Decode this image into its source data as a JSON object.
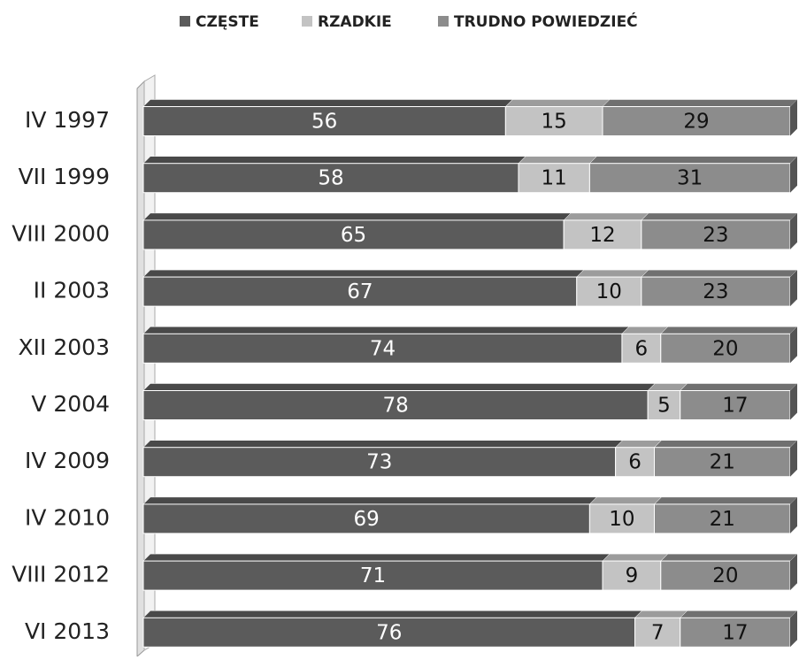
{
  "chart_data": {
    "type": "stacked-bar-horizontal",
    "categories": [
      "IV 1997",
      "VII 1999",
      "VIII 2000",
      "II 2003",
      "XII 2003",
      "V 2004",
      "IV 2009",
      "IV 2010",
      "VIII 2012",
      "VI 2013"
    ],
    "series": [
      {
        "name": "CZĘSTE",
        "color": "#5b5b5b",
        "values": [
          56,
          58,
          65,
          67,
          74,
          78,
          73,
          69,
          71,
          76
        ]
      },
      {
        "name": "RZADKIE",
        "color": "#c3c3c3",
        "values": [
          15,
          11,
          12,
          10,
          6,
          5,
          6,
          10,
          9,
          7
        ]
      },
      {
        "name": "TRUDNO POWIEDZIEĆ",
        "color": "#8c8c8c",
        "values": [
          29,
          31,
          23,
          23,
          20,
          17,
          21,
          21,
          20,
          17
        ]
      }
    ],
    "xlim": [
      0,
      100
    ],
    "legend": "top"
  }
}
